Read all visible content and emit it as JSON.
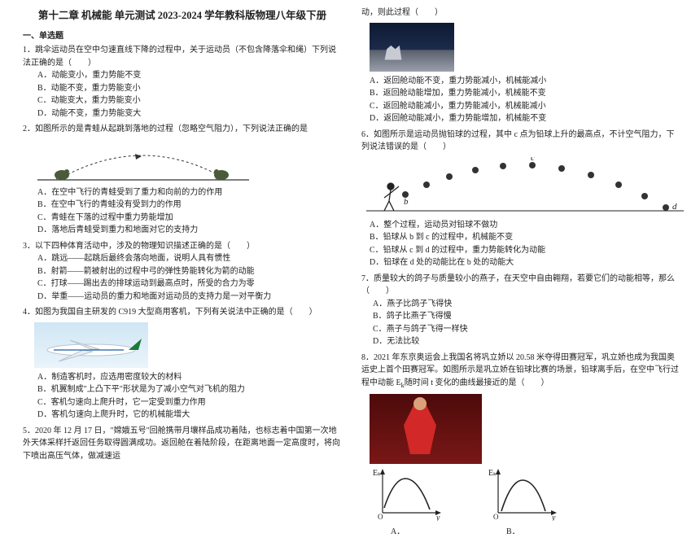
{
  "title": "第十二章 机械能 单元测试 2023-2024 学年教科版物理八年级下册",
  "section1": "一、单选题",
  "q1": {
    "stem": "1．跳伞运动员在空中匀速直线下降的过程中，关于运动员（不包含降落伞和绳）下列说法正确的是（　　）",
    "opts": [
      "A．动能变小，重力势能不变",
      "B．动能不变，重力势能变小",
      "C．动能变大，重力势能变小",
      "D．动能不变，重力势能变大"
    ]
  },
  "q2": {
    "stem": "2．如图所示的是青蛙从起跳到落地的过程（忽略空气阻力），下列说法正确的是"
  },
  "q2opts": [
    "A．在空中飞行的青蛙受到了重力和向前的力的作用",
    "B．在空中飞行的青蛙没有受到力的作用",
    "C．青蛙在下落的过程中重力势能增加",
    "D．落地后青蛙受到重力和地面对它的支持力"
  ],
  "q3": {
    "stem": "3．以下四种体育活动中，涉及的物理知识描述正确的是（　　）",
    "opts": [
      "A．跳远——起跳后最终会落向地面，说明人具有惯性",
      "B．射箭——箭被射出的过程中弓的弹性势能转化为箭的动能",
      "C．打球——踢出去的排球运动到最高点时，所受的合力为零",
      "D．举重——运动员的重力和地面对运动员的支持力是一对平衡力"
    ]
  },
  "q4": {
    "stem": "4．如图为我国自主研发的 C919 大型商用客机，下列有关说法中正确的是（　　）"
  },
  "q4opts": [
    "A．制造客机时，应选用密度较大的材料",
    "B．机翼制成\"上凸下平\"形状是为了减小空气对飞机的阻力",
    "C．客机匀速向上爬升时，它一定受到重力作用",
    "D．客机匀速向上爬升时，它的机械能增大"
  ],
  "q5": {
    "stem": "5．2020 年 12 月 17 日，\"嫦娥五号\"回舱携带月壤样品成功着陆，也标志着中国第一次地外天体采样扦返回任务取得圆满成功。返回舱在着陆阶段，在距离地面一定高度时，将向下喷出高压气体，做减速运"
  },
  "col2top": "动，则此过程（　　）",
  "q5opts": [
    "A．返回舱动能不变，重力势能减小，机械能减小",
    "B．返回舱动能增加，重力势能减小，机械能不变",
    "C．返回舱动能减小，重力势能减小，机械能减小",
    "D．返回舱动能减小，重力势能增加，机械能不变"
  ],
  "q6": {
    "stem": "6．如图所示是运动员抛铅球的过程，其中 c 点为铅球上升的最高点，不计空气阻力，下列说法错误的是（　　）"
  },
  "q6opts": [
    "A．整个过程，运动员对铅球不做功",
    "B．铅球从 b 到 c 的过程中，机械能不变",
    "C．铅球从 c 到 d 的过程中，重力势能转化为动能",
    "D．铅球在 d 处的动能比在 b 处的动能大"
  ],
  "q7": {
    "stem": "7．质量较大的鸽子与质量较小的燕子，在天空中自由翱翔，若要它们的动能相等，那么（　　）",
    "opts": [
      "A．燕子比鸽子飞得快",
      "B．鸽子比燕子飞得慢",
      "C．燕子与鸽子飞得一样快",
      "D．无法比较"
    ]
  },
  "q8": {
    "stem": "8．2021 年东京奥运会上我国名将巩立娇以 20.58 米夺得田赛冠军，巩立娇也成为我国奥运史上首个田赛冠军。如图所示是巩立娇在铅球比赛的场景，铅球离手后，在空中飞行过程中动能 E<sub>k</sub>随时间 t 变化的曲线最接近的是（　　）"
  },
  "frog": {
    "ground_color": "#333333",
    "frog_color": "#4a5a3a",
    "arc_color": "#333333",
    "grass_color": "#3a4a30"
  },
  "plane": {
    "body_color": "#ffffff",
    "tail_color": "#1a7a3a",
    "stripe_color": "#1a5aa0"
  },
  "shotput": {
    "ground_color": "#222222",
    "ball_color": "#333333",
    "labels": [
      "a",
      "b",
      "c",
      "d"
    ]
  },
  "charts": {
    "axis_color": "#222222",
    "curve_color": "#222222",
    "axis_fontsize": 10,
    "labelA": "A．",
    "labelB": "B．",
    "ek_label": "Eₖ",
    "y_label": "y",
    "o_label": "O"
  }
}
